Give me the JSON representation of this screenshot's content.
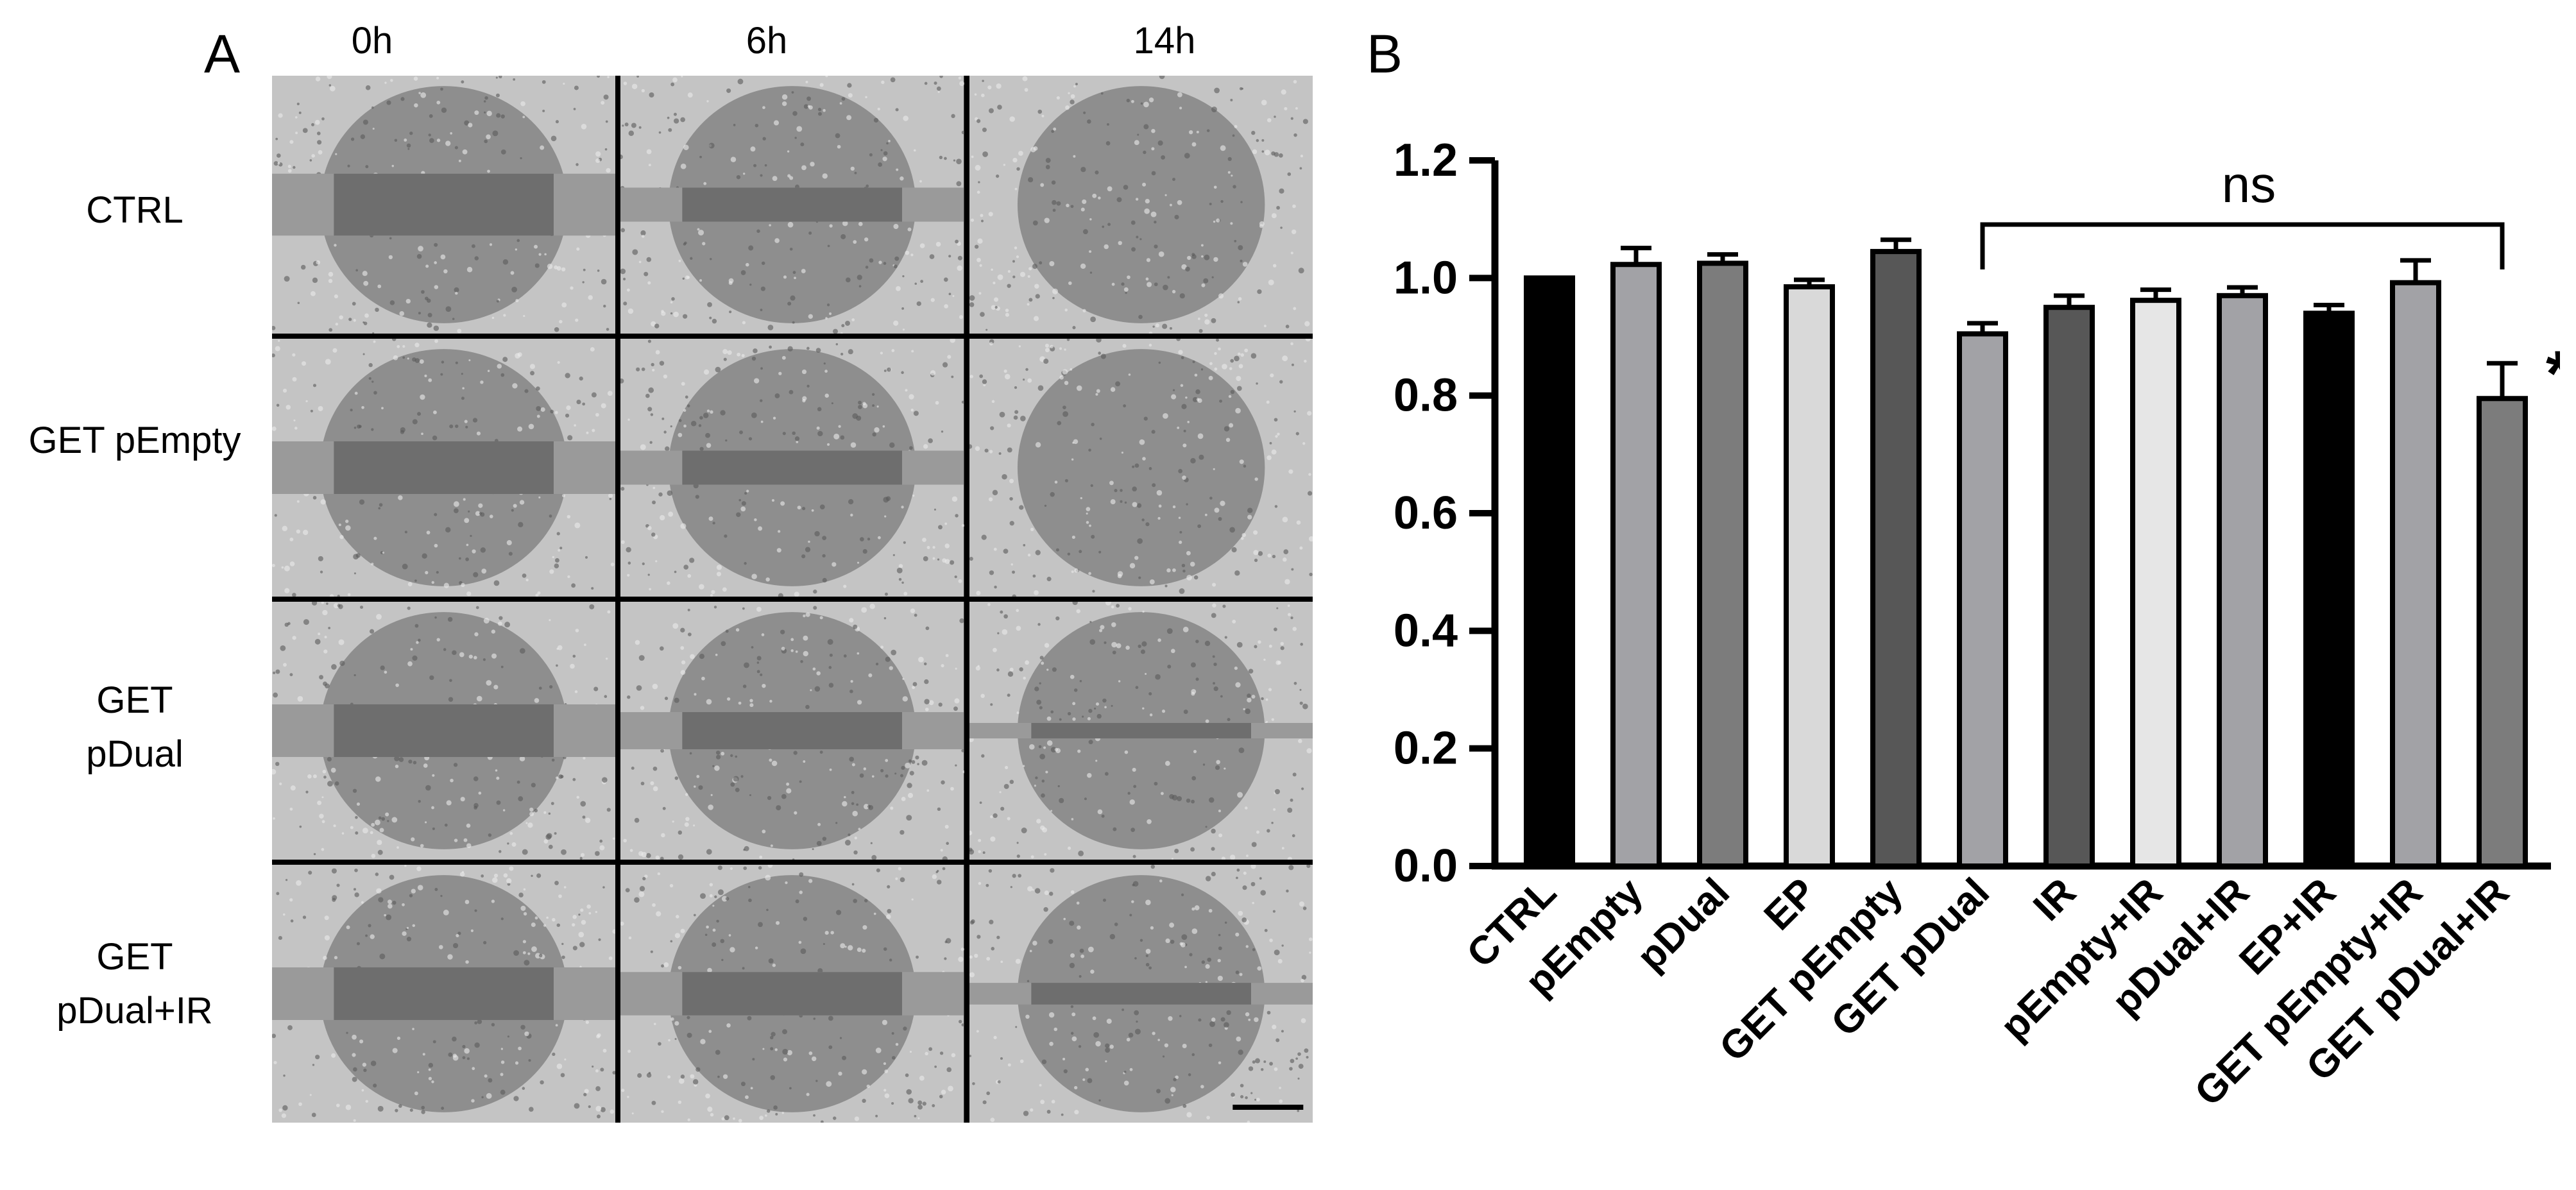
{
  "panel_a": {
    "letter": "A",
    "time_labels": [
      "0h",
      "6h",
      "14h"
    ],
    "row_labels": [
      [
        "CTRL"
      ],
      [
        "GET pEmpty"
      ],
      [
        "GET",
        "pDual"
      ],
      [
        "GET",
        "pDual+IR"
      ]
    ],
    "wound_closure": [
      [
        1.0,
        0.55,
        0.0
      ],
      [
        0.85,
        0.55,
        0.0
      ],
      [
        0.85,
        0.6,
        0.25
      ],
      [
        0.85,
        0.7,
        0.35
      ]
    ]
  },
  "panel_b": {
    "letter": "B"
  },
  "chart_data": {
    "type": "bar",
    "categories": [
      "CTRL",
      "pEmpty",
      "pDual",
      "EP",
      "GET pEmpty",
      "GET pDual",
      "IR",
      "pEmpty+IR",
      "pDual+IR",
      "EP+IR",
      "GET pEmpty+IR",
      "GET pDual+IR"
    ],
    "values": [
      1.0,
      1.023,
      1.025,
      0.985,
      1.045,
      0.905,
      0.95,
      0.962,
      0.97,
      0.94,
      0.992,
      0.795
    ],
    "errors": [
      0.0,
      0.028,
      0.015,
      0.012,
      0.02,
      0.018,
      0.02,
      0.018,
      0.014,
      0.014,
      0.038,
      0.06
    ],
    "bar_colors": [
      "#000000",
      "#a2a2a6",
      "#7c7c7c",
      "#d9d9d9",
      "#575757",
      "#a2a2a6",
      "#575757",
      "#e6e6e6",
      "#a2a2a6",
      "#000000",
      "#a2a2a6",
      "#7c7c7c"
    ],
    "ylim": [
      0,
      1.2
    ],
    "yticks": [
      "0.0",
      "0.2",
      "0.4",
      "0.6",
      "0.8",
      "1.0",
      "1.2"
    ],
    "xlabel": "",
    "ylabel": "",
    "title": "",
    "annotations": {
      "bracket_label": "ns",
      "bracket_from": "GET pDual",
      "bracket_to": "GET pDual+IR",
      "significance_marker": "*",
      "significance_on": "GET pDual+IR"
    }
  }
}
